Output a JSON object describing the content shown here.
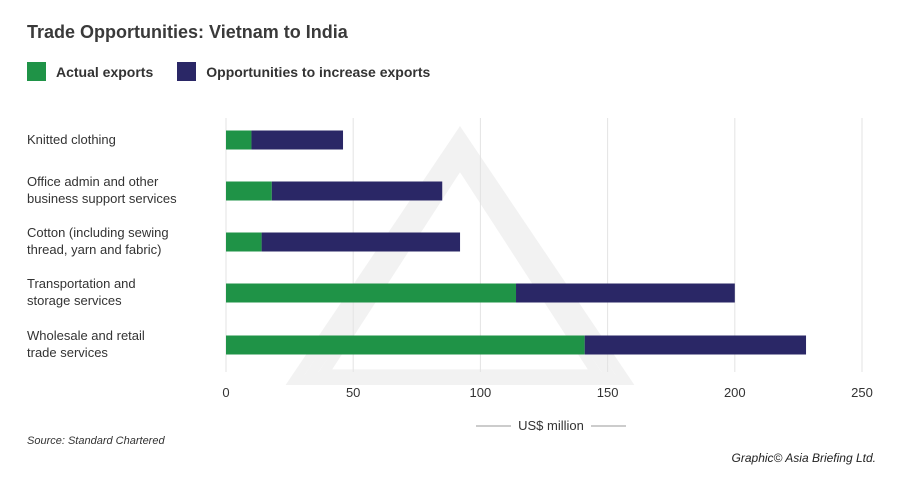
{
  "title": "Trade Opportunities: Vietnam to India",
  "legend": {
    "actual": "Actual exports",
    "opportunity": "Opportunities to increase exports"
  },
  "colors": {
    "actual": "#1f9347",
    "opportunity": "#2a2766",
    "grid": "#e3e3e3",
    "watermark": "#f2f2f2"
  },
  "chart_data": {
    "type": "bar",
    "orientation": "horizontal",
    "stacked": true,
    "title": "Trade Opportunities: Vietnam to India",
    "xlabel": "US$ million",
    "xlim": [
      0,
      250
    ],
    "xticks": [
      0,
      50,
      100,
      150,
      200,
      250
    ],
    "grid": true,
    "legend_position": "top-left",
    "categories": [
      [
        "Knitted clothing"
      ],
      [
        "Office admin and other",
        "business support services"
      ],
      [
        "Cotton (including sewing",
        "thread, yarn and fabric)"
      ],
      [
        "Transportation and",
        "storage services"
      ],
      [
        "Wholesale and retail",
        "trade services"
      ]
    ],
    "series": [
      {
        "name": "Actual exports",
        "values": [
          10,
          18,
          14,
          114,
          141
        ]
      },
      {
        "name": "Opportunities to increase exports",
        "values": [
          36,
          67,
          78,
          86,
          87
        ]
      }
    ]
  },
  "source": "Source: Standard Chartered",
  "credit": "Graphic© Asia Briefing Ltd."
}
